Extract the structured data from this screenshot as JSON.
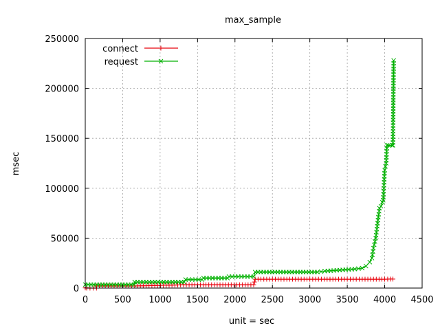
{
  "chart_data": {
    "type": "line",
    "title": "max_sample",
    "xlabel": "unit = sec",
    "ylabel": "msec",
    "xlim": [
      0,
      4500
    ],
    "ylim": [
      0,
      250000
    ],
    "xticks": [
      0,
      500,
      1000,
      1500,
      2000,
      2500,
      3000,
      3500,
      4000,
      4500
    ],
    "yticks": [
      0,
      50000,
      100000,
      150000,
      200000,
      250000
    ],
    "grid": true,
    "legend_position": "top-left",
    "series": [
      {
        "name": "connect",
        "color": "#e8000b",
        "marker": "plus",
        "x": [
          0,
          20,
          20,
          150,
          150,
          660,
          1350,
          2250,
          2270,
          3000,
          3500,
          3700,
          4000,
          4080,
          4110
        ],
        "y": [
          200,
          200,
          0,
          0,
          2100,
          2100,
          3300,
          3300,
          8900,
          8900,
          8900,
          8900,
          8900,
          9000,
          9000
        ]
      },
      {
        "name": "request",
        "color": "#00b000",
        "marker": "cross",
        "x": [
          0,
          650,
          660,
          1320,
          1340,
          1560,
          1580,
          1900,
          1920,
          2250,
          2270,
          3100,
          3200,
          3400,
          3600,
          3700,
          3750,
          3800,
          3830,
          3850,
          3880,
          3900,
          3930,
          3950,
          3970,
          3980,
          4000,
          4010,
          4020,
          4030,
          4050,
          4100,
          4110,
          4120
        ],
        "y": [
          3500,
          3500,
          6000,
          6000,
          8500,
          8500,
          10000,
          10000,
          11500,
          11500,
          16000,
          16000,
          17000,
          18000,
          19000,
          20000,
          22000,
          26000,
          30000,
          40000,
          50000,
          62000,
          80000,
          82000,
          86000,
          88000,
          118000,
          122000,
          125000,
          143000,
          143000,
          143000,
          143000,
          228000
        ]
      }
    ]
  }
}
